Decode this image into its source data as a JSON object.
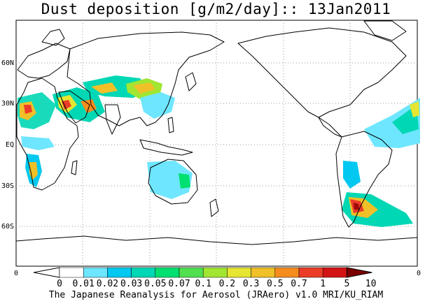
{
  "title": "Dust deposition [g/m2/day]:: 13Jan2011",
  "footer": "The Japanese Reanalysis for Aerosol (JRAero) v1.0 MRI/KU_RIAM",
  "axes": {
    "left_ticks": [
      "60N",
      "30N",
      "EQ",
      "30S",
      "60S"
    ],
    "bottom_left": "0",
    "bottom_right": "0"
  },
  "colorbar": {
    "labels": [
      "0",
      "0.01",
      "0.02",
      "0.03",
      "0.05",
      "0.07",
      "0.1",
      "0.2",
      "0.3",
      "0.5",
      "0.7",
      "1",
      "5",
      "10"
    ],
    "colors": [
      "#ffffff",
      "#6ee6ff",
      "#00c8f0",
      "#00d7b4",
      "#00e070",
      "#50e050",
      "#a0e632",
      "#e6e632",
      "#f0c028",
      "#f58c1e",
      "#eb3c28",
      "#d21414",
      "#a00a0a",
      "#7a0000"
    ]
  },
  "colors": {
    "grid": "#9a9a9a",
    "coast": "#000000"
  }
}
